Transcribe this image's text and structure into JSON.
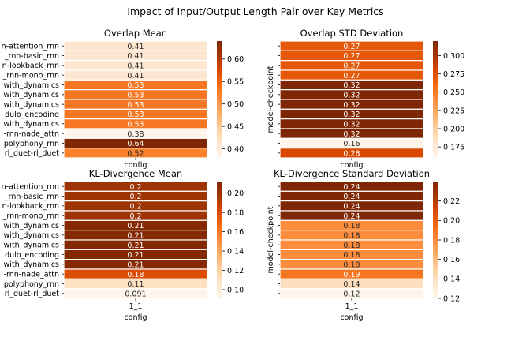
{
  "figure": {
    "suptitle": "Impact of Input/Output Length Pair over Key Metrics",
    "row_labels": [
      "n-attention_rnn",
      "_rnn-basic_rnn",
      "n-lookback_rnn",
      "_rnn-mono_rnn",
      "with_dynamics",
      "with_dynamics",
      "with_dynamics",
      "dulo_encoding",
      "with_dynamics",
      "-rnn-nade_attn",
      "polyphony_rnn",
      "rl_duet-rl_duet"
    ]
  },
  "chart_data": [
    {
      "type": "heatmap",
      "title": "Overlap Mean",
      "xlabel": "config",
      "ylabel": "",
      "x_ticks": [
        ""
      ],
      "values": [
        0.41,
        0.41,
        0.41,
        0.41,
        0.53,
        0.53,
        0.53,
        0.53,
        0.53,
        0.38,
        0.64,
        0.52
      ],
      "annotations": [
        "0.41",
        "0.41",
        "0.41",
        "0.41",
        "0.53",
        "0.53",
        "0.53",
        "0.53",
        "0.53",
        "0.38",
        "0.64",
        "0.52"
      ],
      "show_row_labels": true,
      "colorbar": {
        "min": 0.38,
        "max": 0.64,
        "ticks": [
          0.4,
          0.45,
          0.5,
          0.55,
          0.6
        ],
        "tick_labels": [
          "0.40",
          "0.45",
          "0.50",
          "0.55",
          "0.60"
        ]
      }
    },
    {
      "type": "heatmap",
      "title": "Overlap STD Deviation",
      "xlabel": "config",
      "ylabel": "model-checkpoint",
      "x_ticks": [
        ""
      ],
      "values": [
        0.27,
        0.27,
        0.27,
        0.27,
        0.32,
        0.32,
        0.32,
        0.32,
        0.32,
        0.32,
        0.16,
        0.28
      ],
      "annotations": [
        "0.27",
        "0.27",
        "0.27",
        "0.27",
        "0.32",
        "0.32",
        "0.32",
        "0.32",
        "0.32",
        "0.32",
        "0.16",
        "0.28"
      ],
      "show_row_labels": false,
      "colorbar": {
        "min": 0.16,
        "max": 0.32,
        "ticks": [
          0.175,
          0.2,
          0.225,
          0.25,
          0.275,
          0.3
        ],
        "tick_labels": [
          "0.175",
          "0.200",
          "0.225",
          "0.250",
          "0.275",
          "0.300"
        ]
      }
    },
    {
      "type": "heatmap",
      "title": "KL-Divergence Mean",
      "xlabel": "config",
      "ylabel": "",
      "x_ticks": [
        "1_1"
      ],
      "values": [
        0.2,
        0.2,
        0.2,
        0.2,
        0.21,
        0.21,
        0.21,
        0.21,
        0.21,
        0.18,
        0.11,
        0.091
      ],
      "annotations": [
        "0.2",
        "0.2",
        "0.2",
        "0.2",
        "0.21",
        "0.21",
        "0.21",
        "0.21",
        "0.21",
        "0.18",
        "0.11",
        "0.091"
      ],
      "show_row_labels": true,
      "colorbar": {
        "min": 0.091,
        "max": 0.212,
        "ticks": [
          0.1,
          0.12,
          0.14,
          0.16,
          0.18,
          0.2
        ],
        "tick_labels": [
          "0.10",
          "0.12",
          "0.14",
          "0.16",
          "0.18",
          "0.20"
        ]
      }
    },
    {
      "type": "heatmap",
      "title": "KL-Divergence Standard Deviation",
      "xlabel": "config",
      "ylabel": "model-checkpoint",
      "x_ticks": [
        "1_1"
      ],
      "values": [
        0.24,
        0.24,
        0.24,
        0.24,
        0.18,
        0.18,
        0.18,
        0.18,
        0.18,
        0.19,
        0.14,
        0.12
      ],
      "annotations": [
        "0.24",
        "0.24",
        "0.24",
        "0.24",
        "0.18",
        "0.18",
        "0.18",
        "0.18",
        "0.18",
        "0.19",
        "0.14",
        "0.12"
      ],
      "show_row_labels": false,
      "colorbar": {
        "min": 0.12,
        "max": 0.24,
        "ticks": [
          0.12,
          0.14,
          0.16,
          0.18,
          0.2,
          0.22
        ],
        "tick_labels": [
          "0.12",
          "0.14",
          "0.16",
          "0.18",
          "0.20",
          "0.22"
        ]
      }
    }
  ]
}
